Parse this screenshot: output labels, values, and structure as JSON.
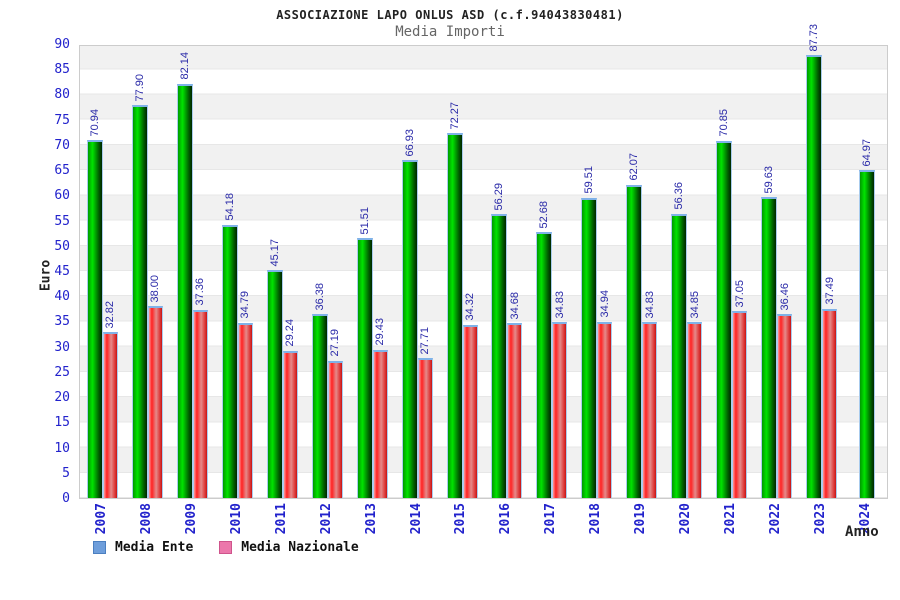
{
  "header": {
    "title": "ASSOCIAZIONE LAPO ONLUS ASD (c.f.94043830481)",
    "subtitle": "Media Importi"
  },
  "axes": {
    "y_title": "Euro",
    "x_title": "Anno",
    "y_ticks": [
      0,
      5,
      10,
      15,
      20,
      25,
      30,
      35,
      40,
      45,
      50,
      55,
      60,
      65,
      70,
      75,
      80,
      85,
      90
    ],
    "tick_color": "#2222cc"
  },
  "legend": {
    "items": [
      {
        "label": "Media Ente",
        "swatch_color": "#6e9edb"
      },
      {
        "label": "Media Nazionale",
        "swatch_color": "#ec77ab"
      }
    ]
  },
  "colors": {
    "bar_ente_main": "#00cc00",
    "bar_nazionale_main": "#ee3333",
    "value_label": "#2a2aa8",
    "band_gray": "#f1f1f1",
    "band_white": "#ffffff"
  },
  "chart_data": {
    "type": "bar",
    "title": "Media Importi",
    "xlabel": "Anno",
    "ylabel": "Euro",
    "ylim": [
      0,
      90
    ],
    "grid": "horizontal-bands-every-5",
    "legend_position": "bottom-left",
    "categories": [
      "2007",
      "2008",
      "2009",
      "2010",
      "2011",
      "2012",
      "2013",
      "2014",
      "2015",
      "2016",
      "2017",
      "2018",
      "2019",
      "2020",
      "2021",
      "2022",
      "2023",
      "2024"
    ],
    "series": [
      {
        "name": "Media Ente",
        "values": [
          70.94,
          77.9,
          82.14,
          54.18,
          45.17,
          36.38,
          51.51,
          66.93,
          72.27,
          56.29,
          52.68,
          59.51,
          62.07,
          56.36,
          70.85,
          59.63,
          87.73,
          64.97
        ]
      },
      {
        "name": "Media Nazionale",
        "values": [
          32.82,
          38.0,
          37.36,
          34.79,
          29.24,
          27.19,
          29.43,
          27.71,
          34.32,
          34.68,
          34.83,
          34.94,
          34.83,
          34.85,
          37.05,
          36.46,
          37.49,
          null
        ]
      }
    ]
  }
}
